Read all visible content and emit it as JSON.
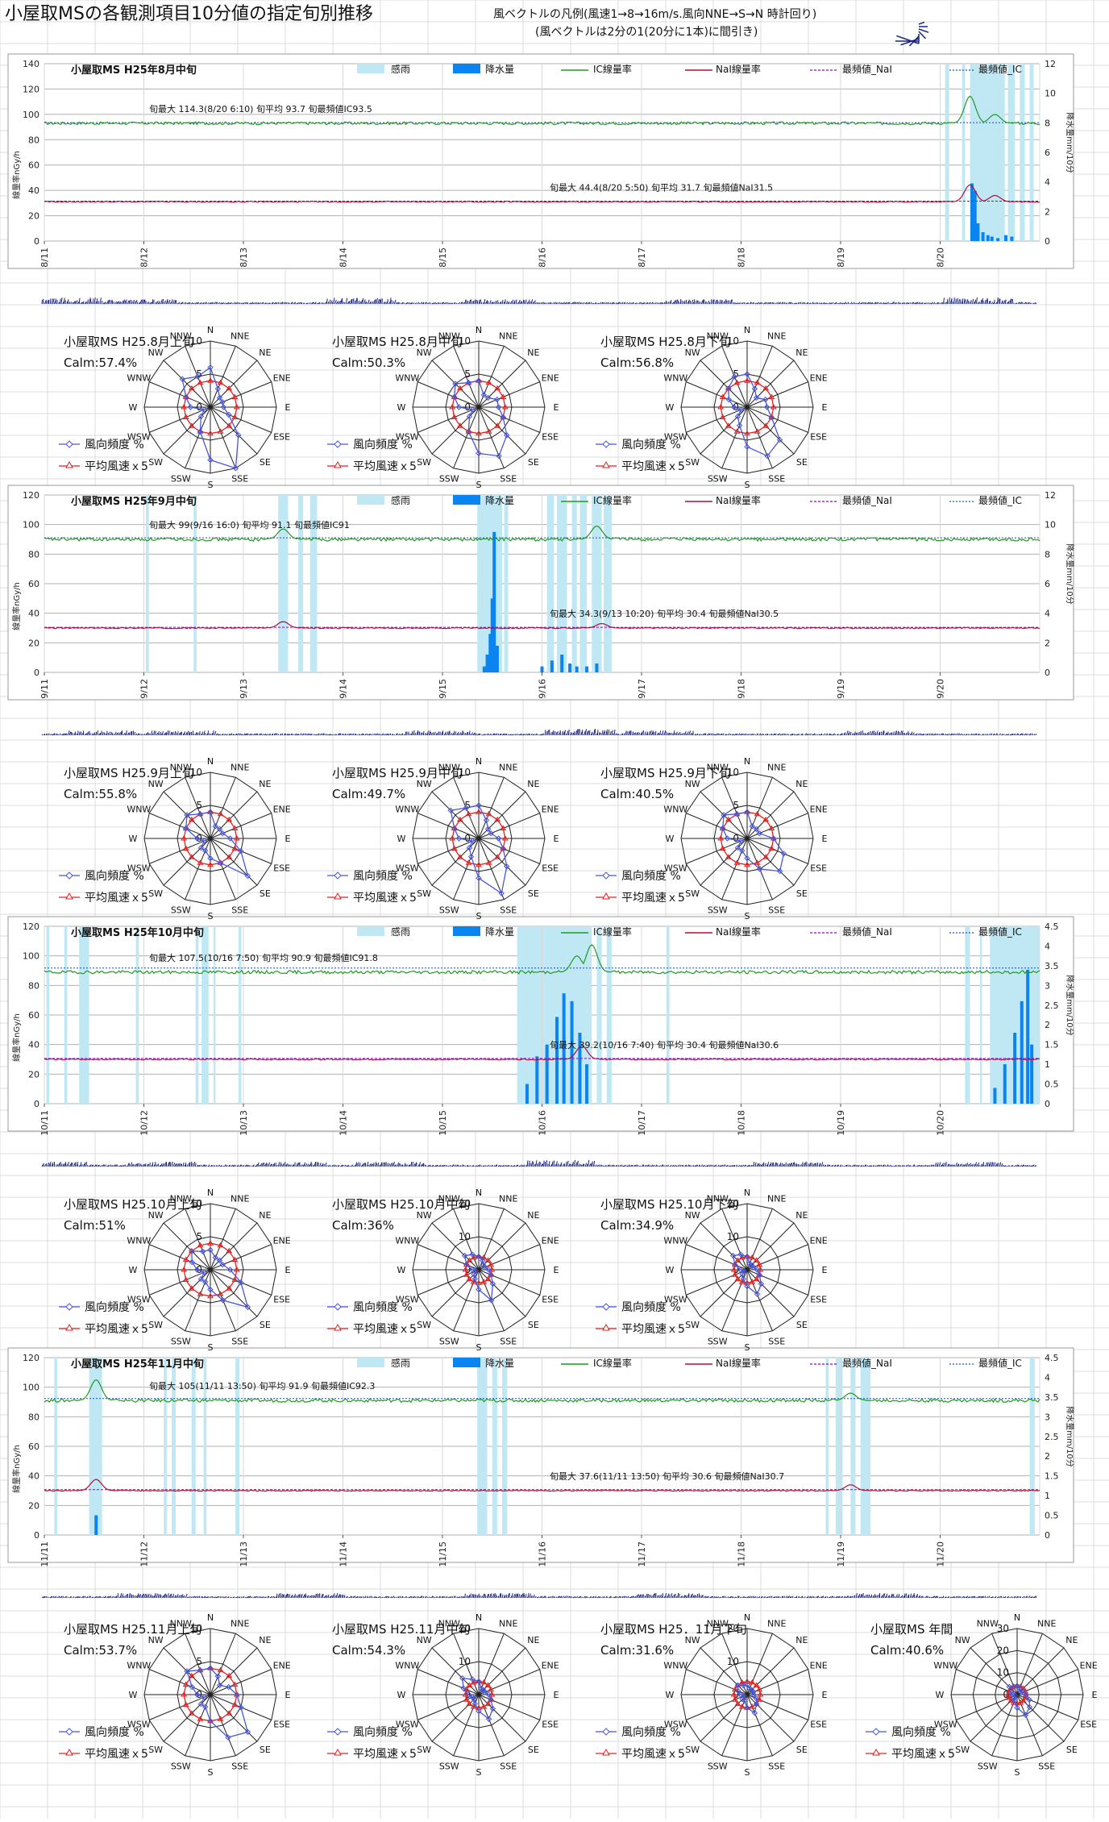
{
  "page": {
    "title": "小屋取MSの各観測項目10分値の指定旬別推移",
    "legend_line1": "風ベクトルの凡例(風速1→8→16m/s.風向NNE→S→N 時計回り)",
    "legend_line2": "(風ベクトルは2分の1(20分に1本)に間引き)"
  },
  "common": {
    "legend": {
      "rain_sense": "感雨",
      "precip": "降水量",
      "ic": "IC線量率",
      "nai": "NaI線量率",
      "mode_nai": "最頻値_NaI",
      "mode_ic": "最頻値_IC"
    },
    "left_axis_label": "線量率nGy/h",
    "right_axis_label": "降水量mm/10分",
    "rose_legend_freq": "風向頻度 %",
    "rose_legend_speed": "平均風速ｘ5",
    "directions": [
      "N",
      "NNE",
      "NE",
      "ENE",
      "E",
      "ESE",
      "SE",
      "SSE",
      "S",
      "SSW",
      "SW",
      "WSW",
      "W",
      "WNW",
      "NW",
      "NNW"
    ]
  },
  "colors": {
    "ic": "#1f9a1f",
    "nai": "#b0103a",
    "mode_nai": "#9900cc",
    "mode_ic": "#1f4fbf",
    "rain_sense": "#bfe8f4",
    "precip": "#0a84f0",
    "wind": "#1a237e",
    "freq": "#4a56d8",
    "speed": "#e02020"
  },
  "chart_data": [
    {
      "type": "line",
      "title": "小屋取MS  H25年8月中旬",
      "x_ticks": [
        "8/11",
        "8/12",
        "8/13",
        "8/14",
        "8/15",
        "8/16",
        "8/17",
        "8/18",
        "8/19",
        "8/20"
      ],
      "ylim": [
        0,
        140
      ],
      "ystep": 20,
      "y2lim": [
        0,
        12
      ],
      "y2step": 2,
      "y2_ticks": [
        "0",
        "2",
        "4",
        "6",
        "8",
        "10",
        "12"
      ],
      "ic_base": 93,
      "nai_base": 31,
      "mode_ic": 93.5,
      "mode_nai": 31.5,
      "ann_ic": "旬最大 114.3(8/20 6:10) 旬平均 93.7 旬最頻値IC93.5",
      "ann_nai": "旬最大 44.4(8/20 5:50) 旬平均 31.7 旬最頻値NaI31.5",
      "rain_periods": [
        [
          9.05,
          9.09
        ],
        [
          9.22,
          9.25
        ],
        [
          9.3,
          9.65
        ],
        [
          9.68,
          9.75
        ],
        [
          9.8,
          9.85
        ],
        [
          9.9,
          9.94
        ]
      ],
      "ic_peaks": [
        [
          9.3,
          114.3
        ],
        [
          9.55,
          100
        ]
      ],
      "nai_peaks": [
        [
          9.3,
          44.4
        ],
        [
          9.55,
          36
        ]
      ],
      "precip": [
        [
          9.32,
          3.9
        ],
        [
          9.35,
          3.4
        ],
        [
          9.38,
          1.2
        ],
        [
          9.43,
          0.6
        ],
        [
          9.48,
          0.4
        ],
        [
          9.52,
          0.3
        ],
        [
          9.58,
          0.2
        ],
        [
          9.66,
          0.4
        ],
        [
          9.72,
          0.3
        ]
      ],
      "wind_bursts": [
        [
          0.25,
          3
        ],
        [
          1.0,
          2
        ],
        [
          3.2,
          3
        ],
        [
          4.6,
          2
        ],
        [
          6.6,
          2
        ],
        [
          9.4,
          3
        ]
      ]
    },
    {
      "type": "line",
      "title": "小屋取MS  H25年9月中旬",
      "x_ticks": [
        "9/11",
        "9/12",
        "9/13",
        "9/14",
        "9/15",
        "9/16",
        "9/17",
        "9/18",
        "9/19",
        "9/20"
      ],
      "ylim": [
        0,
        120
      ],
      "ystep": 20,
      "y2lim": [
        0,
        12
      ],
      "y2step": 2,
      "y2_ticks": [
        "0",
        "2",
        "4",
        "6",
        "8",
        "10",
        "12"
      ],
      "ic_base": 90,
      "nai_base": 30,
      "mode_ic": 91,
      "mode_nai": 30.5,
      "ann_ic": "旬最大 99(9/16 16:0) 旬平均 91.1 旬最頻値IC91",
      "ann_nai": "旬最大 34.3(9/13 10:20) 旬平均 30.4 旬最頻値NaI30.5",
      "rain_periods": [
        [
          1.02,
          1.05
        ],
        [
          1.5,
          1.53
        ],
        [
          2.35,
          2.45
        ],
        [
          2.55,
          2.6
        ],
        [
          2.67,
          2.74
        ],
        [
          4.35,
          4.6
        ],
        [
          4.62,
          4.66
        ],
        [
          5.05,
          5.12
        ],
        [
          5.15,
          5.25
        ],
        [
          5.3,
          5.35
        ],
        [
          5.38,
          5.45
        ],
        [
          5.5,
          5.6
        ],
        [
          5.62,
          5.7
        ]
      ],
      "ic_peaks": [
        [
          2.4,
          97
        ],
        [
          5.55,
          99
        ]
      ],
      "nai_peaks": [
        [
          2.4,
          34.3
        ],
        [
          5.6,
          33
        ]
      ],
      "precip": [
        [
          4.42,
          0.4
        ],
        [
          4.45,
          1.2
        ],
        [
          4.48,
          2.6
        ],
        [
          4.5,
          5.0
        ],
        [
          4.52,
          9.5
        ],
        [
          4.55,
          1.8
        ],
        [
          5.0,
          0.4
        ],
        [
          5.1,
          0.8
        ],
        [
          5.2,
          1.2
        ],
        [
          5.28,
          0.6
        ],
        [
          5.35,
          0.4
        ],
        [
          5.45,
          0.4
        ],
        [
          5.55,
          0.6
        ]
      ],
      "wind_bursts": [
        [
          0.6,
          2
        ],
        [
          1.4,
          2
        ],
        [
          4.0,
          2
        ],
        [
          5.4,
          3
        ],
        [
          6.2,
          2
        ],
        [
          8.4,
          2
        ]
      ]
    },
    {
      "type": "line",
      "title": "小屋取MS  H25年10月中旬",
      "x_ticks": [
        "10/11",
        "10/12",
        "10/13",
        "10/14",
        "10/15",
        "10/16",
        "10/17",
        "10/18",
        "10/19",
        "10/20"
      ],
      "ylim": [
        0,
        120
      ],
      "ystep": 20,
      "y2lim": [
        0,
        4.5
      ],
      "y2step": 0.5,
      "y2_ticks": [
        "0",
        "0.5",
        "1",
        "1.5",
        "2",
        "2.5",
        "3",
        "3.5",
        "4",
        "4.5"
      ],
      "ic_base": 89,
      "nai_base": 30,
      "mode_ic": 91.8,
      "mode_nai": 30.6,
      "ann_ic": "旬最大 107.5(10/16 7:50) 旬平均 90.9 旬最頻値IC91.8",
      "ann_nai": "旬最大 39.2(10/16 7:40) 旬平均 30.4 旬最頻値NaI30.6",
      "rain_periods": [
        [
          0.02,
          0.05
        ],
        [
          0.2,
          0.23
        ],
        [
          0.35,
          0.45
        ],
        [
          0.92,
          0.95
        ],
        [
          1.52,
          1.55
        ],
        [
          1.58,
          1.65
        ],
        [
          1.7,
          1.72
        ],
        [
          1.95,
          1.98
        ],
        [
          4.75,
          5.5
        ],
        [
          5.55,
          5.6
        ],
        [
          5.65,
          5.7
        ],
        [
          6.25,
          6.28
        ],
        [
          9.25,
          9.3
        ],
        [
          9.4,
          9.42
        ],
        [
          9.5,
          10
        ]
      ],
      "ic_peaks": [
        [
          5.5,
          107.5
        ],
        [
          5.35,
          100
        ]
      ],
      "nai_peaks": [
        [
          5.4,
          39.2
        ]
      ],
      "precip": [
        [
          4.85,
          0.5
        ],
        [
          4.95,
          1.2
        ],
        [
          5.05,
          1.5
        ],
        [
          5.15,
          2.2
        ],
        [
          5.22,
          2.8
        ],
        [
          5.3,
          2.6
        ],
        [
          5.38,
          1.8
        ],
        [
          5.45,
          1.0
        ],
        [
          9.55,
          0.4
        ],
        [
          9.65,
          1.0
        ],
        [
          9.75,
          1.8
        ],
        [
          9.82,
          2.6
        ],
        [
          9.88,
          3.4
        ],
        [
          9.92,
          1.5
        ]
      ],
      "wind_bursts": [
        [
          0.1,
          2
        ],
        [
          1.2,
          2
        ],
        [
          2.5,
          2
        ],
        [
          3.5,
          2
        ],
        [
          5.2,
          3
        ],
        [
          7.5,
          2
        ],
        [
          9.3,
          2
        ]
      ]
    },
    {
      "type": "line",
      "title": "小屋取MS  H25年11月中旬",
      "x_ticks": [
        "11/11",
        "11/12",
        "11/13",
        "11/14",
        "11/15",
        "11/16",
        "11/17",
        "11/18",
        "11/19",
        "11/20"
      ],
      "ylim": [
        0,
        120
      ],
      "ystep": 20,
      "y2lim": [
        0,
        4.5
      ],
      "y2step": 0.5,
      "y2_ticks": [
        "0",
        "0.5",
        "1",
        "1.5",
        "2",
        "2.5",
        "3",
        "3.5",
        "4",
        "4.5"
      ],
      "ic_base": 91,
      "nai_base": 30,
      "mode_ic": 92.3,
      "mode_nai": 30.7,
      "ann_ic": "旬最大 105(11/11 13:50) 旬平均 91.9 旬最頻値IC92.3",
      "ann_nai": "旬最大 37.6(11/11 13:50) 旬平均 30.6 旬最頻値NaI30.7",
      "rain_periods": [
        [
          0.1,
          0.13
        ],
        [
          0.45,
          0.58
        ],
        [
          1.2,
          1.23
        ],
        [
          1.28,
          1.32
        ],
        [
          1.48,
          1.52
        ],
        [
          1.6,
          1.63
        ],
        [
          1.92,
          1.96
        ],
        [
          4.35,
          4.45
        ],
        [
          4.5,
          4.55
        ],
        [
          4.6,
          4.65
        ],
        [
          7.85,
          7.88
        ],
        [
          7.95,
          8.02
        ],
        [
          8.1,
          8.15
        ],
        [
          8.2,
          8.3
        ],
        [
          9.9,
          9.95
        ]
      ],
      "ic_peaks": [
        [
          0.52,
          105
        ],
        [
          8.1,
          96
        ]
      ],
      "nai_peaks": [
        [
          0.52,
          37.6
        ],
        [
          8.1,
          34
        ]
      ],
      "precip": [
        [
          0.52,
          0.5
        ]
      ],
      "wind_bursts": [
        [
          1.1,
          2
        ],
        [
          2.7,
          2
        ],
        [
          4.6,
          2
        ],
        [
          6.3,
          2
        ],
        [
          8.5,
          2
        ]
      ]
    }
  ],
  "roses": [
    [
      {
        "name": "小屋取MS H25.8月上旬",
        "calm": "Calm:57.4%",
        "ticks": [
          "0",
          "5",
          "10"
        ],
        "max": 10,
        "freq": [
          6,
          3,
          2,
          2,
          2,
          3,
          6,
          10,
          8,
          4,
          2,
          1,
          3,
          4,
          6,
          5
        ],
        "speed": [
          4,
          4,
          4,
          4,
          4,
          4,
          4,
          4,
          4,
          4,
          4,
          4,
          4,
          4,
          4,
          4
        ]
      },
      {
        "name": "小屋取MS H25.8月中旬",
        "calm": "Calm:50.3%",
        "ticks": [
          "0",
          "5",
          "10"
        ],
        "max": 10,
        "freq": [
          4,
          2,
          2,
          3,
          3,
          4,
          6,
          8,
          7,
          4,
          2,
          1,
          3,
          4,
          5,
          4
        ],
        "speed": [
          4,
          4,
          4,
          4,
          4,
          4,
          4,
          4,
          4,
          4,
          4,
          4,
          4,
          4,
          4,
          4
        ]
      },
      {
        "name": "小屋取MS H25.8月下旬",
        "calm": "Calm:56.8%",
        "ticks": [
          "0",
          "5",
          "10"
        ],
        "max": 10,
        "freq": [
          5,
          3,
          2,
          3,
          3,
          4,
          7,
          8,
          6,
          3,
          2,
          1,
          2,
          3,
          4,
          5
        ],
        "speed": [
          4,
          4,
          4,
          4,
          4,
          4,
          4,
          4,
          4,
          4,
          4,
          4,
          4,
          4,
          4,
          4
        ]
      }
    ],
    [
      {
        "name": "小屋取MS H25.9月上旬",
        "calm": "Calm:55.8%",
        "ticks": [
          "0",
          "5",
          "10"
        ],
        "max": 10,
        "freq": [
          4,
          2,
          2,
          2,
          3,
          5,
          8,
          4,
          3,
          2,
          2,
          1,
          2,
          4,
          5,
          4
        ],
        "speed": [
          4,
          4,
          4,
          4,
          4,
          4,
          4,
          4,
          4,
          4,
          4,
          4,
          4,
          4,
          4,
          4
        ]
      },
      {
        "name": "小屋取MS H25.9月中旬",
        "calm": "Calm:49.7%",
        "ticks": [
          "0",
          "5",
          "10"
        ],
        "max": 10,
        "freq": [
          5,
          3,
          2,
          2,
          3,
          4,
          6,
          9,
          6,
          3,
          2,
          1,
          3,
          4,
          6,
          5
        ],
        "speed": [
          4,
          4,
          4,
          4,
          4,
          4,
          4,
          4,
          4,
          4,
          4,
          4,
          4,
          4,
          4,
          4
        ]
      },
      {
        "name": "小屋取MS H25.9月下旬",
        "calm": "Calm:40.5%",
        "ticks": [
          "0",
          "5",
          "10"
        ],
        "max": 10,
        "freq": [
          4,
          2,
          2,
          2,
          4,
          6,
          7,
          5,
          3,
          2,
          2,
          1,
          3,
          4,
          5,
          4
        ],
        "speed": [
          4,
          4,
          4,
          4,
          4,
          4,
          4,
          4,
          4,
          4,
          4,
          4,
          4,
          4,
          4,
          4
        ]
      }
    ],
    [
      {
        "name": "小屋取MS H25.10月上旬",
        "calm": "Calm:51%",
        "ticks": [
          "0",
          "5",
          "10"
        ],
        "max": 10,
        "freq": [
          3,
          2,
          2,
          2,
          3,
          5,
          8,
          5,
          3,
          2,
          2,
          1,
          2,
          3,
          4,
          3
        ],
        "speed": [
          4,
          4,
          4,
          4,
          4,
          4,
          4,
          4,
          4,
          4,
          4,
          4,
          4,
          4,
          4,
          4
        ]
      },
      {
        "name": "小屋取MS H25.10月中旬",
        "calm": "Calm:36%",
        "ticks": [
          "0",
          "10",
          "20"
        ],
        "max": 20,
        "freq": [
          4,
          3,
          2,
          2,
          3,
          4,
          6,
          10,
          6,
          3,
          2,
          1,
          2,
          4,
          6,
          5
        ],
        "speed": [
          4,
          4,
          4,
          4,
          4,
          4,
          4,
          4,
          4,
          4,
          4,
          4,
          4,
          4,
          4,
          4
        ]
      },
      {
        "name": "小屋取MS H25.10月下旬",
        "calm": "Calm:34.9%",
        "ticks": [
          "0",
          "10",
          "20"
        ],
        "max": 20,
        "freq": [
          4,
          2,
          2,
          2,
          3,
          4,
          6,
          8,
          5,
          3,
          2,
          1,
          2,
          4,
          6,
          5
        ],
        "speed": [
          4,
          4,
          4,
          4,
          4,
          4,
          4,
          4,
          4,
          4,
          4,
          4,
          4,
          4,
          4,
          4
        ]
      }
    ],
    [
      {
        "name": "小屋取MS H25.11月上旬",
        "calm": "Calm:53.7%",
        "ticks": [
          "0",
          "5",
          "10"
        ],
        "max": 10,
        "freq": [
          4,
          3,
          2,
          3,
          4,
          5,
          8,
          7,
          4,
          2,
          2,
          1,
          2,
          3,
          5,
          4
        ],
        "speed": [
          4,
          4,
          4,
          4,
          4,
          4,
          4,
          4,
          4,
          4,
          4,
          4,
          4,
          4,
          4,
          4
        ]
      },
      {
        "name": "小屋取MS H25.11月中旬",
        "calm": "Calm:54.3%",
        "ticks": [
          "0",
          "10",
          "20"
        ],
        "max": 20,
        "freq": [
          4,
          2,
          2,
          2,
          3,
          4,
          6,
          8,
          5,
          3,
          2,
          2,
          3,
          5,
          7,
          5
        ],
        "speed": [
          4,
          4,
          4,
          4,
          4,
          4,
          4,
          4,
          4,
          4,
          4,
          4,
          4,
          4,
          4,
          4
        ]
      },
      {
        "name": "小屋取MS H25．11月下旬",
        "calm": "Calm:31.6%",
        "ticks": [
          "0",
          "10",
          "20"
        ],
        "max": 20,
        "freq": [
          3,
          2,
          2,
          2,
          2,
          3,
          4,
          6,
          4,
          2,
          2,
          1,
          2,
          3,
          4,
          3
        ],
        "speed": [
          4,
          4,
          4,
          4,
          4,
          4,
          4,
          4,
          4,
          4,
          4,
          4,
          4,
          4,
          4,
          4
        ]
      },
      {
        "name": "小屋取MS 年間",
        "calm": "Calm:40.6%",
        "ticks": [
          "0",
          "10",
          "20",
          "30"
        ],
        "max": 30,
        "freq": [
          4,
          3,
          2,
          3,
          4,
          6,
          8,
          10,
          6,
          3,
          2,
          1,
          2,
          3,
          5,
          4
        ],
        "speed": [
          4,
          4,
          4,
          4,
          4,
          4,
          4,
          4,
          4,
          4,
          4,
          4,
          4,
          4,
          4,
          4
        ]
      }
    ]
  ]
}
